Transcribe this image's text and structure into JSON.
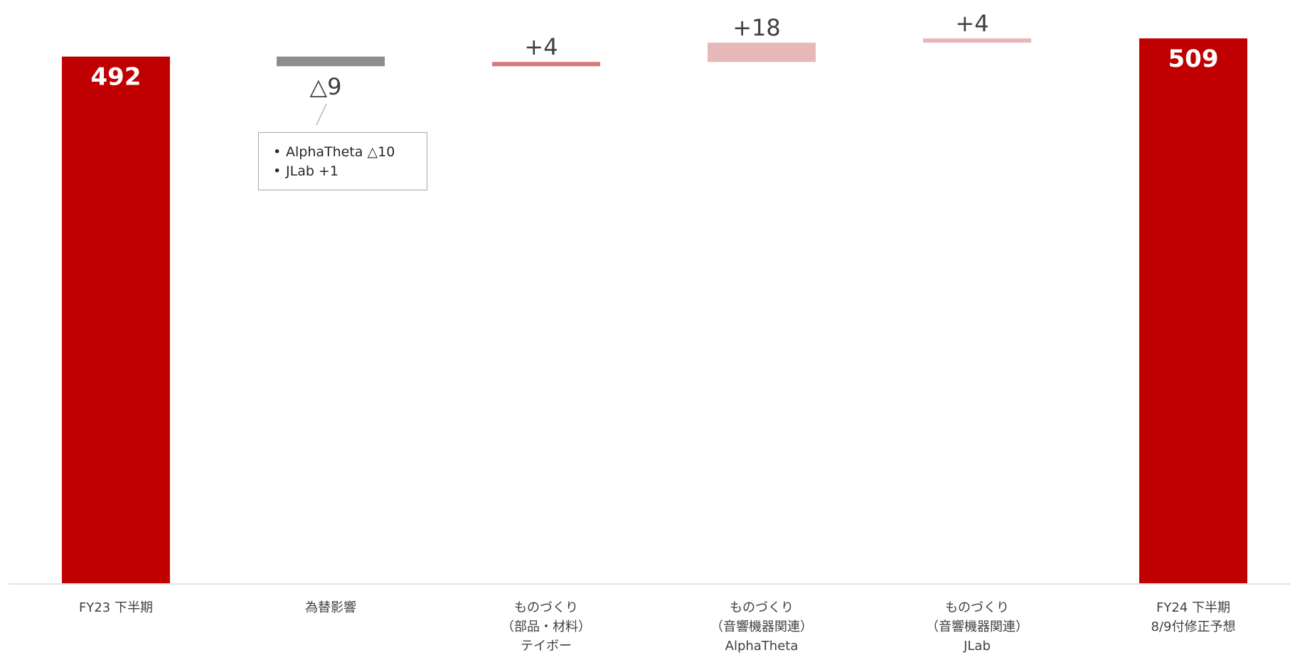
{
  "chart_data": {
    "type": "bar",
    "subtype": "waterfall",
    "categories": [
      [
        "FY23 下半期"
      ],
      [
        "為替影響"
      ],
      [
        "ものづくり",
        "（部品・材料）",
        "テイボー"
      ],
      [
        "ものづくり",
        "（音響機器関連）",
        "AlphaTheta"
      ],
      [
        "ものづくり",
        "（音響機器関連）",
        "JLab"
      ],
      [
        "FY24 下半期",
        "8/9付修正予想"
      ]
    ],
    "steps": [
      {
        "kind": "total",
        "value": 492,
        "label": "492",
        "color": "#c00000"
      },
      {
        "kind": "delta",
        "value": -9,
        "label": "△9",
        "color": "#8c8c8c"
      },
      {
        "kind": "delta",
        "value": 4,
        "label": "+4",
        "color": "#d9797a"
      },
      {
        "kind": "delta",
        "value": 18,
        "label": "+18",
        "color": "#e6b8b8"
      },
      {
        "kind": "delta",
        "value": 4,
        "label": "+4",
        "color": "#e6b8b8"
      },
      {
        "kind": "total",
        "value": 509,
        "label": "509",
        "color": "#c00000"
      }
    ],
    "ylim": [
      0,
      515
    ],
    "grid": false,
    "legend": "none"
  },
  "callout": {
    "items": [
      "AlphaTheta △10",
      "JLab +1"
    ]
  },
  "colors": {
    "axis": "#d9d9d9",
    "leader": "#a6a6a6"
  }
}
